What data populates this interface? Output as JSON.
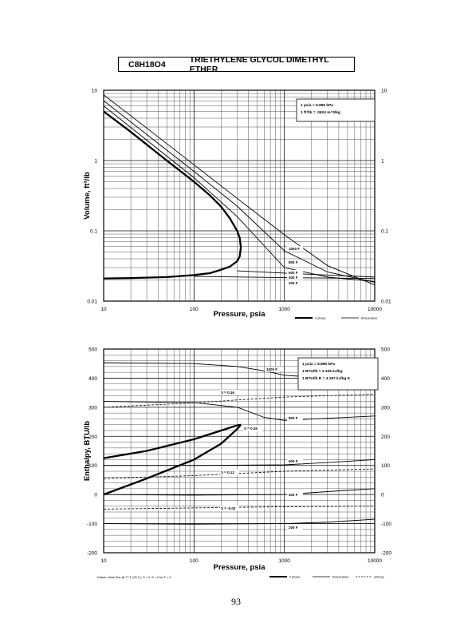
{
  "header": {
    "formula": "C8H18O4",
    "compound": "TRIETHYLENE GLYCOL DIMETHYL ETHER"
  },
  "page_number": "93",
  "chart_data": [
    {
      "type": "line",
      "xlabel": "Pressure,  psia",
      "ylabel": "Volume,  ft^3/lb",
      "x_scale": "log",
      "y_scale": "log",
      "xlim": [
        10,
        10000
      ],
      "ylim": [
        0.01,
        10
      ],
      "x_ticks": [
        "10",
        "100",
        "1000",
        "10000"
      ],
      "y_ticks": [
        "0.01",
        "0.1",
        "1",
        "10"
      ],
      "grid": true,
      "conversion_notes": [
        "1 psia  =  6.895 kPa",
        "1 ft^3/lb  =  .0624 m^3/kg"
      ],
      "legend_items": [
        {
          "label": "2 phase",
          "style": "thick"
        },
        {
          "label": "temperature",
          "style": "thin"
        }
      ],
      "curve_labels": [
        "1000 F",
        "800 F",
        "600 F",
        "400 F",
        "200 F"
      ],
      "series": [
        {
          "name": "2 phase",
          "style": "thick",
          "x": [
            10,
            20,
            50,
            100,
            150,
            200,
            250,
            300,
            320,
            330,
            320,
            300,
            250,
            200,
            150,
            100,
            50,
            20,
            10
          ],
          "y": [
            5.0,
            2.55,
            1.0,
            0.5,
            0.32,
            0.22,
            0.15,
            0.1,
            0.08,
            0.058,
            0.043,
            0.037,
            0.031,
            0.028,
            0.025,
            0.0235,
            0.022,
            0.0213,
            0.021
          ]
        },
        {
          "name": "1000 F",
          "style": "thin",
          "x": [
            10,
            30,
            100,
            300,
            1000,
            3000,
            10000
          ],
          "y": [
            8.6,
            2.9,
            0.87,
            0.29,
            0.088,
            0.032,
            0.017
          ]
        },
        {
          "name": "800 F",
          "style": "thin",
          "x": [
            10,
            30,
            100,
            300,
            1000,
            3000,
            10000
          ],
          "y": [
            7.1,
            2.35,
            0.7,
            0.225,
            0.052,
            0.026,
            0.0185
          ]
        },
        {
          "name": "600 F",
          "style": "thin",
          "x": [
            10,
            30,
            100,
            300,
            1000,
            3000,
            10000
          ],
          "y": [
            6.0,
            1.95,
            0.57,
            0.16,
            0.03,
            0.022,
            0.019
          ]
        },
        {
          "name": "400 F",
          "style": "thin",
          "x": [
            300,
            1000,
            3000,
            10000
          ],
          "y": [
            0.027,
            0.025,
            0.0235,
            0.022
          ]
        },
        {
          "name": "200 F",
          "style": "thin",
          "x": [
            100,
            1000,
            10000
          ],
          "y": [
            0.0225,
            0.0216,
            0.021
          ]
        }
      ]
    },
    {
      "type": "line",
      "xlabel": "Pressure,  psia",
      "ylabel": "Enthalpy,  BTU/lb",
      "x_scale": "log",
      "y_scale": "linear",
      "xlim": [
        10,
        10000
      ],
      "ylim": [
        -200,
        500
      ],
      "x_ticks": [
        "10",
        "100",
        "1000",
        "10000"
      ],
      "y_ticks": [
        "-200",
        "-100",
        "0",
        "100",
        "200",
        "300",
        "400",
        "500"
      ],
      "grid": true,
      "conversion_notes": [
        "1 psia  =  6.895 kPa",
        "1 BTU/lb  =  2.326 kJ/kg",
        "1 BTU/lb R  =  4.187 kJ/kg K"
      ],
      "datum_note": "Datum: Ideal Gas @ 77 F (25 C),  H = 0,  S = 0 for F = 0",
      "legend_items": [
        {
          "label": "2 phase",
          "style": "thick"
        },
        {
          "label": "temperature",
          "style": "thin"
        },
        {
          "label": "entropy",
          "style": "dashed"
        }
      ],
      "curve_labels": [
        "1000 F",
        "800 F",
        "600 F",
        "400 F",
        "200 F"
      ],
      "entropy_labels": [
        "S = 0.36",
        "S = 0.26",
        "S = 0.12",
        "S = -0.02"
      ],
      "series": [
        {
          "name": "2 phase vapor",
          "style": "thick",
          "x": [
            10,
            30,
            100,
            200,
            300,
            330
          ],
          "y": [
            125,
            150,
            190,
            220,
            238,
            240
          ]
        },
        {
          "name": "2 phase liquid",
          "style": "thick",
          "x": [
            10,
            30,
            100,
            200,
            300,
            330
          ],
          "y": [
            0,
            55,
            120,
            175,
            225,
            240
          ]
        },
        {
          "name": "1000 F",
          "style": "thin",
          "x": [
            10,
            100,
            300,
            600,
            1000,
            3000,
            10000
          ],
          "y": [
            453,
            450,
            440,
            425,
            410,
            400,
            398
          ]
        },
        {
          "name": "800 F",
          "style": "thin",
          "x": [
            10,
            100,
            300,
            600,
            1000,
            3000,
            10000
          ],
          "y": [
            320,
            316,
            300,
            265,
            255,
            262,
            270
          ]
        },
        {
          "name": "600 F",
          "style": "thin",
          "x": [
            10,
            100,
            1000,
            3000,
            10000
          ],
          "y": [
            100,
            100,
            102,
            110,
            120
          ]
        },
        {
          "name": "400 F",
          "style": "thin",
          "x": [
            10,
            100,
            1000,
            3000,
            10000
          ],
          "y": [
            0,
            -2,
            0,
            10,
            20
          ]
        },
        {
          "name": "200 F",
          "style": "thin",
          "x": [
            10,
            100,
            1000,
            3000,
            10000
          ],
          "y": [
            -100,
            -102,
            -100,
            -95,
            -85
          ]
        },
        {
          "name": "S = 0.36",
          "style": "dashed",
          "x": [
            10,
            100,
            300,
            1000,
            10000
          ],
          "y": [
            300,
            315,
            325,
            335,
            345
          ]
        },
        {
          "name": "S = 0.12",
          "style": "dashed",
          "x": [
            10,
            100,
            300,
            1000,
            10000
          ],
          "y": [
            55,
            65,
            72,
            80,
            88
          ]
        },
        {
          "name": "S = -0.02",
          "style": "dashed",
          "x": [
            10,
            100,
            300,
            1000,
            10000
          ],
          "y": [
            -50,
            -46,
            -44,
            -42,
            -40
          ]
        }
      ]
    }
  ]
}
